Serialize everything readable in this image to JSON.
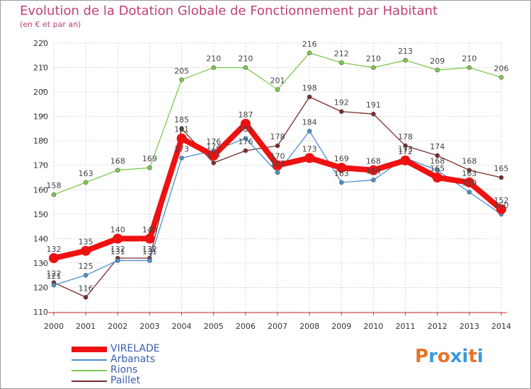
{
  "header": {
    "title": "Evolution de la Dotation Globale de Fonctionnement par Habitant",
    "subtitle": "(en € et par an)"
  },
  "logo": {
    "text": "Proxiti",
    "colors": [
      "#e8732a",
      "#3a9ad9",
      "#e8732a",
      "#3a9ad9",
      "#3a9ad9",
      "#e8732a",
      "#3a9ad9"
    ]
  },
  "chart_data": {
    "type": "line",
    "x": [
      "2000",
      "2001",
      "2002",
      "2003",
      "2004",
      "2005",
      "2006",
      "2007",
      "2008",
      "2009",
      "2010",
      "2011",
      "2012",
      "2013",
      "2014"
    ],
    "ylim": [
      110,
      220
    ],
    "yticks": [
      110,
      120,
      130,
      140,
      150,
      160,
      170,
      180,
      190,
      200,
      210,
      220
    ],
    "grid": true,
    "legend": "bottom-left",
    "series": [
      {
        "name": "Rions",
        "color": "#7ec850",
        "values": [
          158,
          163,
          168,
          169,
          205,
          210,
          210,
          201,
          216,
          212,
          210,
          213,
          209,
          210,
          206
        ]
      },
      {
        "name": "Paillet",
        "color": "#7a2a2a",
        "values": [
          122,
          116,
          132,
          132,
          185,
          171,
          176,
          178,
          198,
          192,
          191,
          178,
          174,
          168,
          165
        ]
      },
      {
        "name": "Arbanats",
        "color": "#4a90d0",
        "values": [
          121,
          125,
          131,
          131,
          173,
          176,
          181,
          167,
          184,
          163,
          164,
          173,
          168,
          159,
          150
        ]
      },
      {
        "name": "VIRELADE",
        "color": "#ee1111",
        "values": [
          132,
          135,
          140,
          140,
          181,
          174,
          187,
          170,
          173,
          169,
          168,
          172,
          165,
          163,
          152
        ]
      }
    ]
  }
}
